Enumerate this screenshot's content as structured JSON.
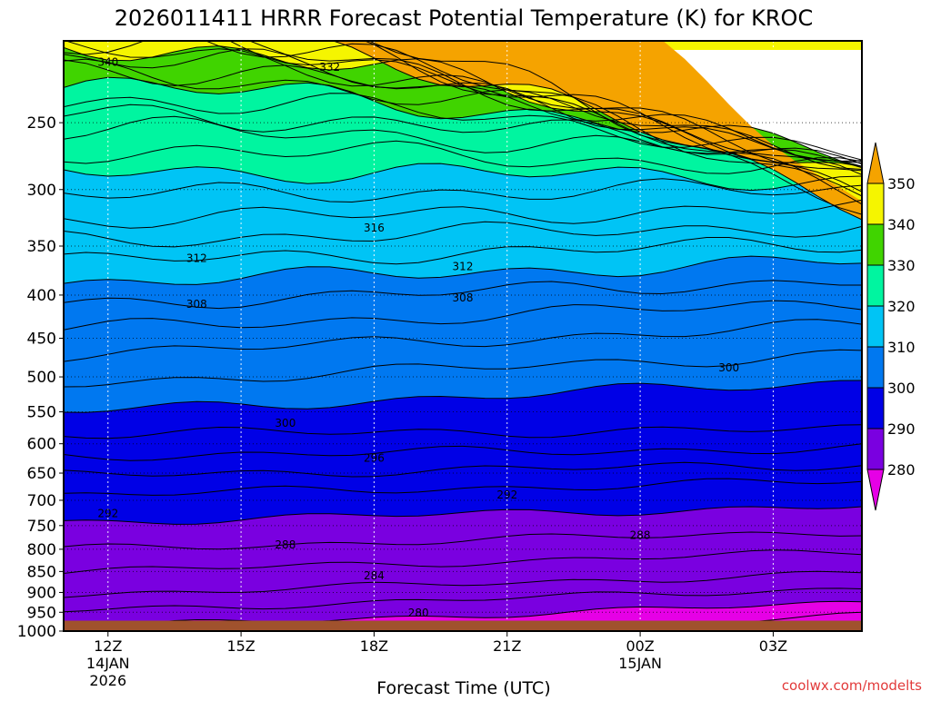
{
  "chart_data": {
    "type": "heatmap",
    "title": "2026011411 HRRR Forecast Potential Temperature (K) for KROC",
    "xlabel": "Forecast Time (UTC)",
    "ylabel": "",
    "credit": "coolwx.com/modelts",
    "y_pressure_ticks": [
      "250",
      "300",
      "350",
      "400",
      "450",
      "500",
      "550",
      "600",
      "650",
      "700",
      "750",
      "800",
      "850",
      "900",
      "950",
      "1000"
    ],
    "x_ticks": [
      {
        "label": "12Z",
        "sub1": "14JAN",
        "sub2": "2026"
      },
      {
        "label": "15Z",
        "sub1": "",
        "sub2": ""
      },
      {
        "label": "18Z",
        "sub1": "",
        "sub2": ""
      },
      {
        "label": "21Z",
        "sub1": "",
        "sub2": ""
      },
      {
        "label": "00Z",
        "sub1": "15JAN",
        "sub2": ""
      },
      {
        "label": "03Z",
        "sub1": "",
        "sub2": ""
      }
    ],
    "x_hour_range": [
      -1,
      17
    ],
    "y_range_hpa": [
      200,
      1000
    ],
    "y_scale": "log",
    "grid": "dotted",
    "colorbar": {
      "levels": [
        "350",
        "340",
        "330",
        "320",
        "310",
        "300",
        "290",
        "280"
      ],
      "colors": {
        "c350": "#f5a300",
        "c340": "#f5f500",
        "c330": "#40d400",
        "c320": "#00f5a0",
        "c310": "#00c4f5",
        "c300": "#0078f0",
        "c290": "#0000e6",
        "c280": "#7a00e0",
        "c270": "#e600e6"
      },
      "placement": "right"
    },
    "ground_color": "#a0522d",
    "contour_labels": [
      {
        "text": "340",
        "hour": 0.0,
        "p": 212
      },
      {
        "text": "332",
        "hour": 5.0,
        "p": 215
      },
      {
        "text": "316",
        "hour": 6.0,
        "p": 333
      },
      {
        "text": "312",
        "hour": 2.0,
        "p": 362
      },
      {
        "text": "312",
        "hour": 8.0,
        "p": 370
      },
      {
        "text": "308",
        "hour": 2.0,
        "p": 410
      },
      {
        "text": "308",
        "hour": 8.0,
        "p": 403
      },
      {
        "text": "300",
        "hour": 14.0,
        "p": 488
      },
      {
        "text": "300",
        "hour": 4.0,
        "p": 567
      },
      {
        "text": "296",
        "hour": 6.0,
        "p": 624
      },
      {
        "text": "292",
        "hour": 9.0,
        "p": 690
      },
      {
        "text": "292",
        "hour": 0.0,
        "p": 726
      },
      {
        "text": "288",
        "hour": 12.0,
        "p": 770
      },
      {
        "text": "288",
        "hour": 4.0,
        "p": 790
      },
      {
        "text": "284",
        "hour": 6.0,
        "p": 860
      },
      {
        "text": "280",
        "hour": 7.0,
        "p": 952
      }
    ],
    "surface_pressure_hpa": 972
  }
}
